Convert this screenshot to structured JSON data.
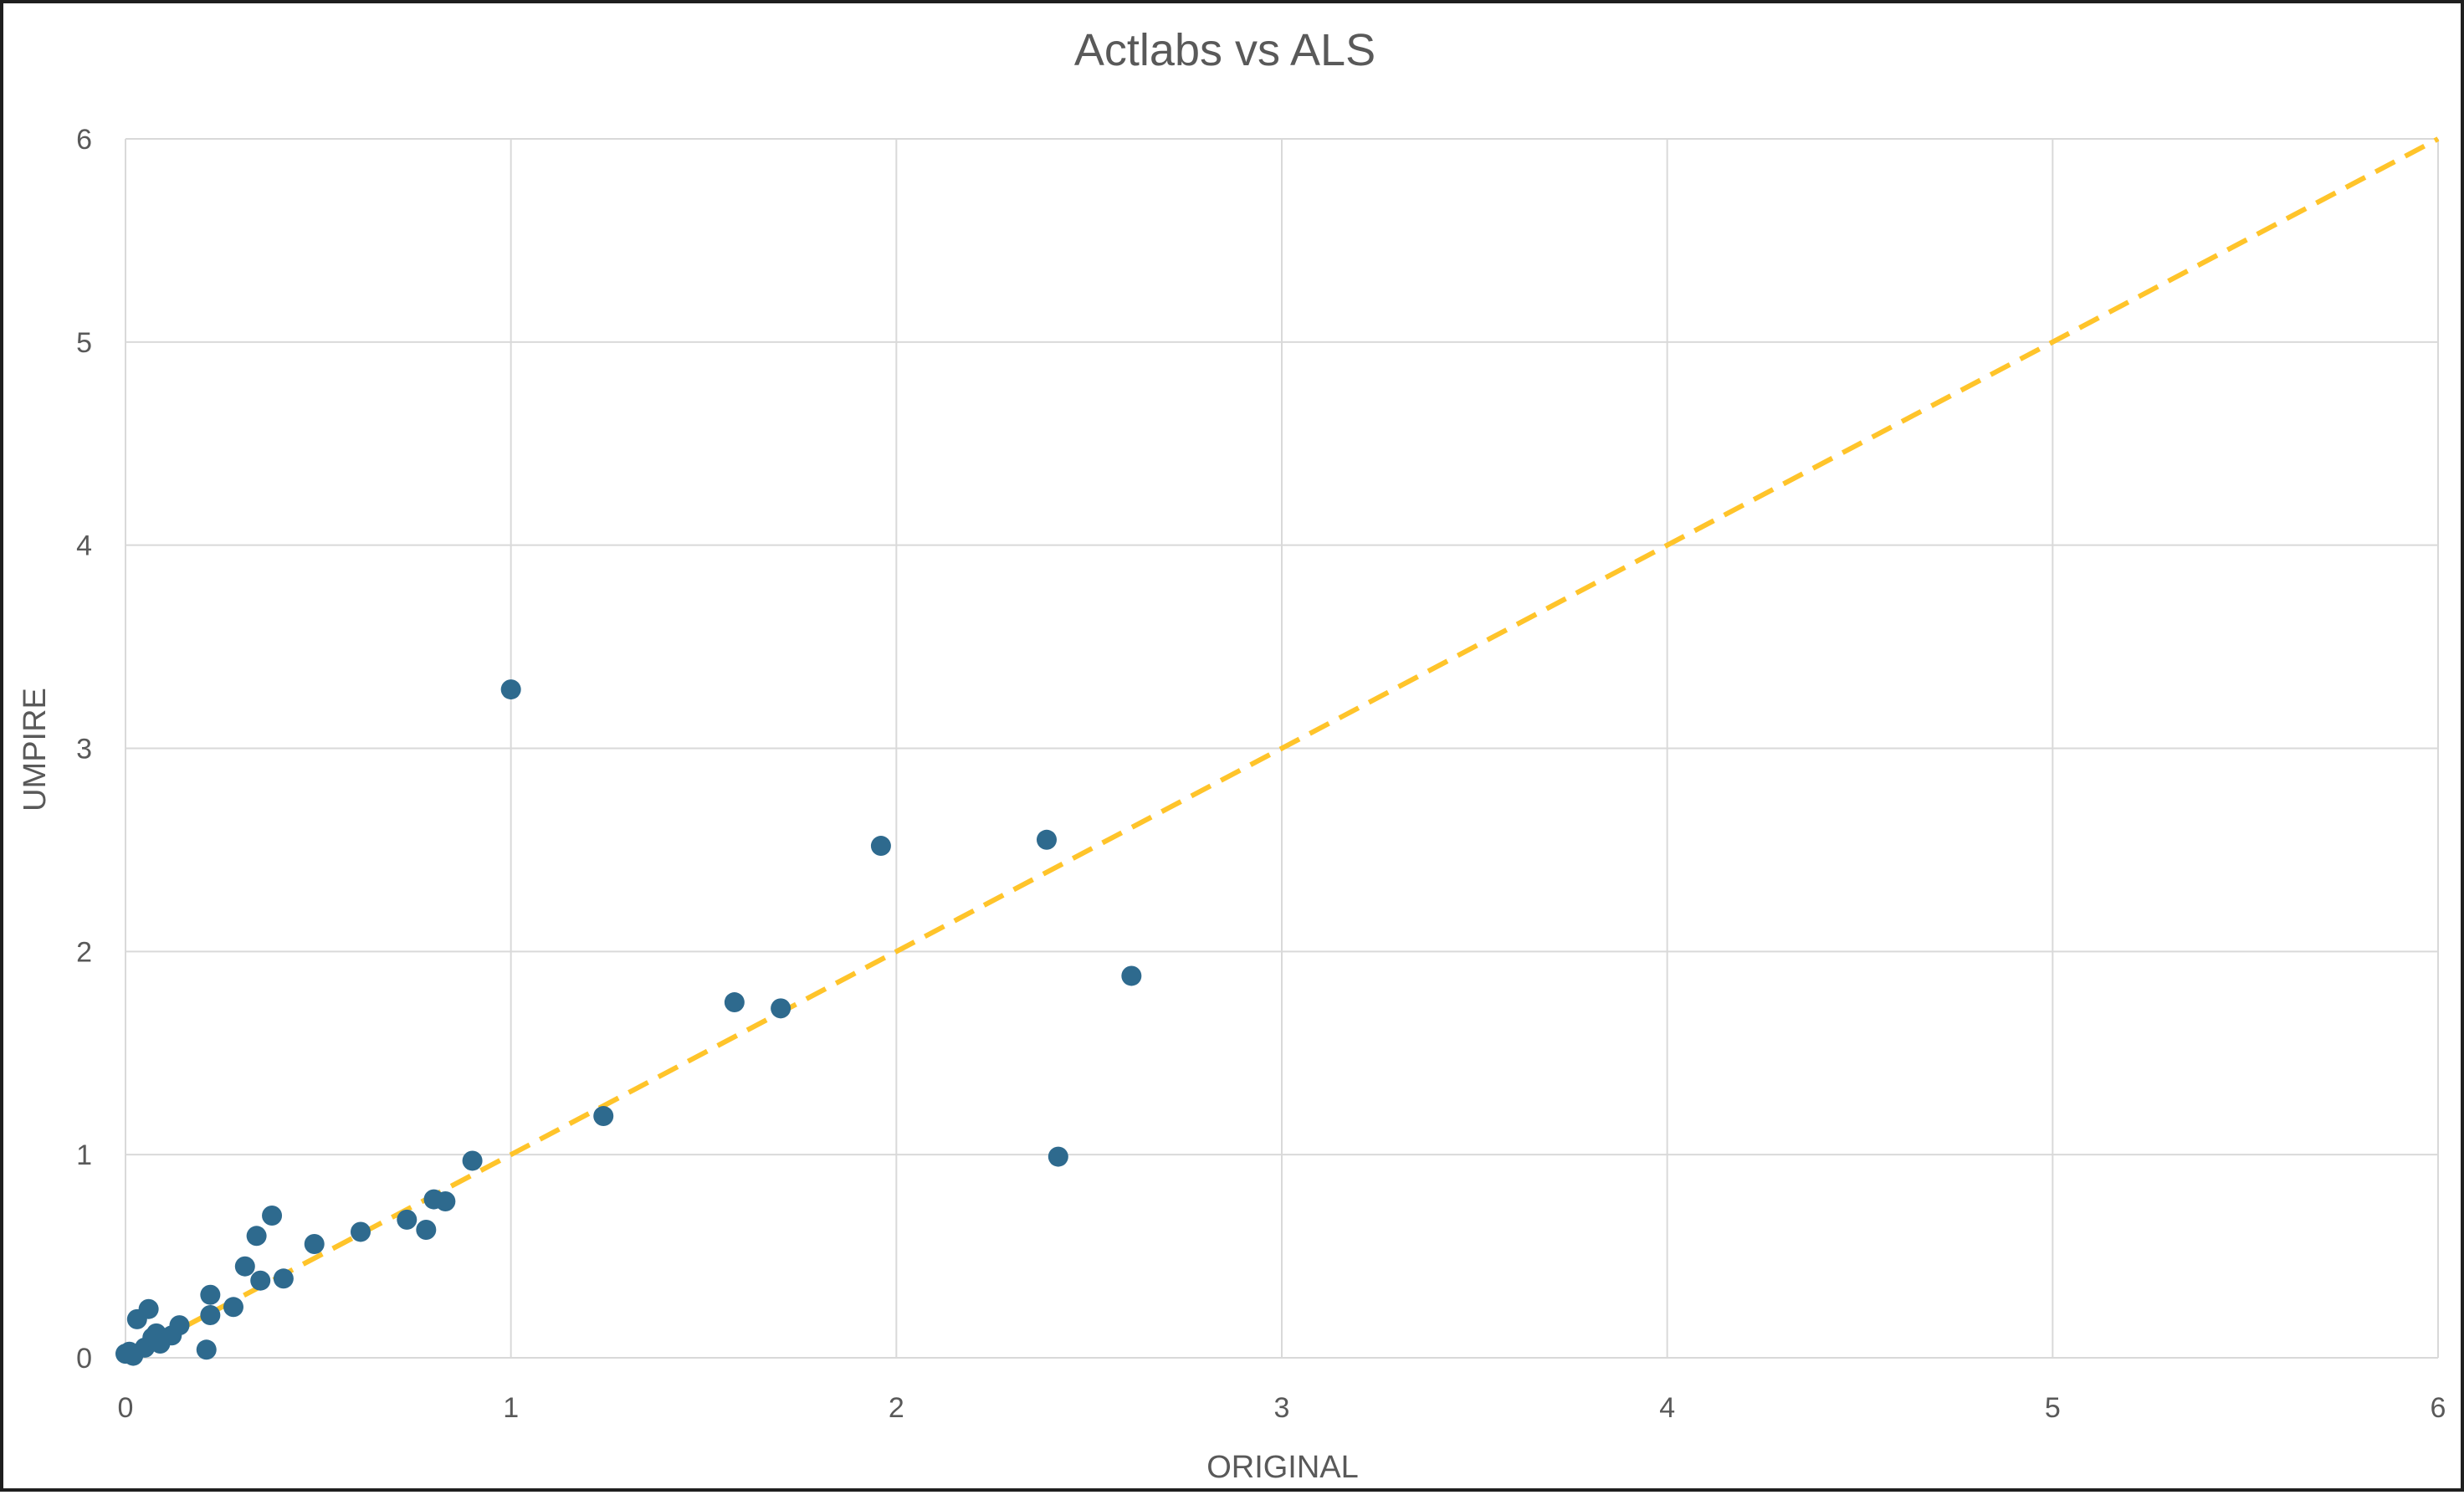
{
  "chart_data": {
    "type": "scatter",
    "title": "Actlabs vs ALS",
    "xlabel": "ORIGINAL",
    "ylabel": "UMPIRE",
    "xlim": [
      0,
      6
    ],
    "ylim": [
      0,
      6
    ],
    "x_ticks": [
      "0",
      "1",
      "2",
      "3",
      "4",
      "5",
      "6"
    ],
    "y_ticks": [
      "0",
      "1",
      "2",
      "3",
      "4",
      "5",
      "6"
    ],
    "grid": true,
    "legend": "none",
    "marker_color": "#2E6A8E",
    "series": [
      {
        "points": [
          {
            "x": 0.0,
            "y": 0.02
          },
          {
            "x": 0.01,
            "y": 0.03
          },
          {
            "x": 0.02,
            "y": 0.01
          },
          {
            "x": 0.03,
            "y": 0.19
          },
          {
            "x": 0.05,
            "y": 0.05
          },
          {
            "x": 0.06,
            "y": 0.24
          },
          {
            "x": 0.07,
            "y": 0.1
          },
          {
            "x": 0.08,
            "y": 0.12
          },
          {
            "x": 0.09,
            "y": 0.07
          },
          {
            "x": 0.12,
            "y": 0.11
          },
          {
            "x": 0.14,
            "y": 0.16
          },
          {
            "x": 0.21,
            "y": 0.04
          },
          {
            "x": 0.22,
            "y": 0.21
          },
          {
            "x": 0.22,
            "y": 0.31
          },
          {
            "x": 0.28,
            "y": 0.25
          },
          {
            "x": 0.31,
            "y": 0.45
          },
          {
            "x": 0.34,
            "y": 0.6
          },
          {
            "x": 0.35,
            "y": 0.38
          },
          {
            "x": 0.38,
            "y": 0.7
          },
          {
            "x": 0.41,
            "y": 0.39
          },
          {
            "x": 0.49,
            "y": 0.56
          },
          {
            "x": 0.61,
            "y": 0.62
          },
          {
            "x": 0.73,
            "y": 0.68
          },
          {
            "x": 0.78,
            "y": 0.63
          },
          {
            "x": 0.8,
            "y": 0.78
          },
          {
            "x": 0.83,
            "y": 0.77
          },
          {
            "x": 0.9,
            "y": 0.97
          },
          {
            "x": 1.0,
            "y": 3.29
          },
          {
            "x": 1.24,
            "y": 1.19
          },
          {
            "x": 1.58,
            "y": 1.75
          },
          {
            "x": 1.7,
            "y": 1.72
          },
          {
            "x": 1.96,
            "y": 2.52
          },
          {
            "x": 2.39,
            "y": 2.55
          },
          {
            "x": 2.42,
            "y": 0.99
          },
          {
            "x": 2.61,
            "y": 1.88
          }
        ]
      }
    ],
    "reference_line": {
      "style": "dashed",
      "color": "#FFC42A",
      "points": [
        {
          "x": 0,
          "y": 0
        },
        {
          "x": 6,
          "y": 6
        }
      ]
    }
  }
}
